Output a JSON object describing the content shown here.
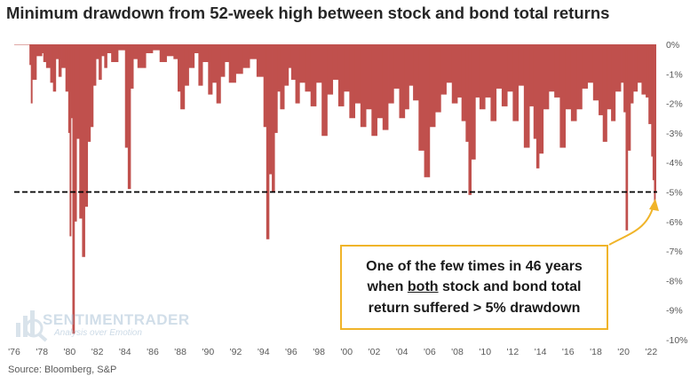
{
  "colors": {
    "series": "#c0504d",
    "callout_border": "#f0b429",
    "threshold": "#000000"
  },
  "source": "Source: Bloomberg, S&P",
  "watermark": {
    "name": "SENTIMENTRADER",
    "tagline": "Analysis over Emotion"
  },
  "callout": {
    "line1": "One of the few times in 46 years",
    "line2_pre": "when ",
    "line2_emph": "both",
    "line2_post": " stock and bond total",
    "line3": "return suffered > 5% drawdown"
  },
  "chart_data": {
    "type": "area",
    "title": "Minimum drawdown from 52-week high between stock and bond total returns",
    "xlabel": "",
    "ylabel": "",
    "xlim": [
      1976,
      2022.3
    ],
    "ylim": [
      -10,
      0
    ],
    "y_ticks": [
      "0%",
      "-1%",
      "-2%",
      "-3%",
      "-4%",
      "-5%",
      "-6%",
      "-7%",
      "-8%",
      "-9%",
      "-10%"
    ],
    "x_ticks": [
      "'76",
      "'78",
      "'80",
      "'82",
      "'84",
      "'86",
      "'88",
      "'90",
      "'92",
      "'94",
      "'96",
      "'98",
      "'00",
      "'02",
      "'04",
      "'06",
      "'08",
      "'10",
      "'12",
      "'14",
      "'16",
      "'18",
      "'20",
      "'22"
    ],
    "threshold": -5,
    "series": [
      {
        "name": "Minimum drawdown",
        "x": [
          1976.0,
          1976.9,
          1977.1,
          1977.2,
          1977.3,
          1977.6,
          1978.0,
          1978.1,
          1978.3,
          1978.6,
          1978.8,
          1979.0,
          1979.2,
          1979.4,
          1979.7,
          1979.9,
          1980.0,
          1980.1,
          1980.2,
          1980.35,
          1980.5,
          1980.7,
          1980.9,
          1981.1,
          1981.3,
          1981.5,
          1981.7,
          1981.9,
          1982.1,
          1982.3,
          1982.5,
          1982.7,
          1983.0,
          1983.5,
          1984.0,
          1984.2,
          1984.4,
          1984.6,
          1984.9,
          1985.5,
          1986.0,
          1986.5,
          1987.0,
          1987.5,
          1987.8,
          1988.0,
          1988.3,
          1988.6,
          1989.0,
          1989.3,
          1989.6,
          1990.0,
          1990.3,
          1990.6,
          1990.9,
          1991.2,
          1991.5,
          1992.0,
          1992.5,
          1993.0,
          1993.5,
          1994.0,
          1994.2,
          1994.4,
          1994.6,
          1994.8,
          1995.0,
          1995.2,
          1995.5,
          1995.8,
          1996.0,
          1996.3,
          1996.6,
          1997.0,
          1997.4,
          1997.8,
          1998.2,
          1998.6,
          1999.0,
          1999.4,
          1999.8,
          2000.2,
          2000.6,
          2001.0,
          2001.4,
          2001.8,
          2002.2,
          2002.6,
          2003.0,
          2003.4,
          2003.8,
          2004.2,
          2004.5,
          2004.8,
          2005.2,
          2005.6,
          2006.0,
          2006.4,
          2006.8,
          2007.2,
          2007.6,
          2008.0,
          2008.3,
          2008.6,
          2008.8,
          2009.0,
          2009.3,
          2009.6,
          2010.0,
          2010.4,
          2010.8,
          2011.2,
          2011.6,
          2012.0,
          2012.4,
          2012.8,
          2013.2,
          2013.5,
          2013.7,
          2013.9,
          2014.2,
          2014.6,
          2015.0,
          2015.4,
          2015.8,
          2016.2,
          2016.6,
          2017.0,
          2017.4,
          2017.8,
          2018.2,
          2018.5,
          2018.8,
          2019.1,
          2019.4,
          2019.8,
          2020.0,
          2020.15,
          2020.3,
          2020.5,
          2020.7,
          2021.0,
          2021.3,
          2021.6,
          2021.8,
          2022.0,
          2022.1,
          2022.2,
          2022.3
        ],
        "values": [
          0,
          0,
          -0.7,
          -2.0,
          -1.2,
          -0.4,
          -0.3,
          -0.6,
          -0.8,
          -1.3,
          -1.6,
          -0.5,
          -1.1,
          -0.8,
          -1.6,
          -3.0,
          -6.5,
          -2.5,
          -9.8,
          -6.0,
          -3.2,
          -5.9,
          -7.2,
          -5.5,
          -3.3,
          -2.8,
          -1.4,
          -0.5,
          -1.2,
          -0.4,
          -0.8,
          -0.3,
          -0.6,
          -0.2,
          -3.5,
          -4.9,
          -1.5,
          -0.5,
          -0.8,
          -0.3,
          -0.2,
          -0.6,
          -0.4,
          -0.5,
          -1.6,
          -2.2,
          -1.4,
          -0.8,
          -0.3,
          -1.4,
          -0.6,
          -1.7,
          -1.3,
          -2.0,
          -1.1,
          -0.6,
          -1.3,
          -1.0,
          -0.8,
          -0.5,
          -1.1,
          -2.8,
          -6.6,
          -4.4,
          -5.0,
          -3.0,
          -1.6,
          -2.2,
          -1.4,
          -0.8,
          -1.2,
          -2.0,
          -1.3,
          -1.6,
          -2.1,
          -1.3,
          -3.1,
          -1.7,
          -1.2,
          -2.1,
          -1.6,
          -2.5,
          -2.0,
          -2.8,
          -2.2,
          -3.1,
          -2.5,
          -2.9,
          -2.0,
          -1.5,
          -2.5,
          -2.2,
          -1.4,
          -1.9,
          -3.6,
          -4.5,
          -2.8,
          -2.3,
          -1.7,
          -1.3,
          -2.0,
          -1.8,
          -2.6,
          -3.3,
          -5.1,
          -3.9,
          -1.8,
          -2.2,
          -1.8,
          -2.6,
          -1.5,
          -2.1,
          -1.6,
          -2.6,
          -1.4,
          -3.5,
          -2.1,
          -3.2,
          -4.2,
          -3.7,
          -2.2,
          -1.6,
          -1.8,
          -3.5,
          -2.2,
          -2.6,
          -2.2,
          -1.5,
          -1.3,
          -1.9,
          -2.4,
          -3.3,
          -2.2,
          -2.6,
          -1.6,
          -1.3,
          -2.3,
          -6.3,
          -3.6,
          -2.0,
          -1.6,
          -1.3,
          -1.7,
          -1.8,
          -2.7,
          -3.8,
          -4.6,
          -5.5,
          -5.0
        ]
      }
    ]
  }
}
